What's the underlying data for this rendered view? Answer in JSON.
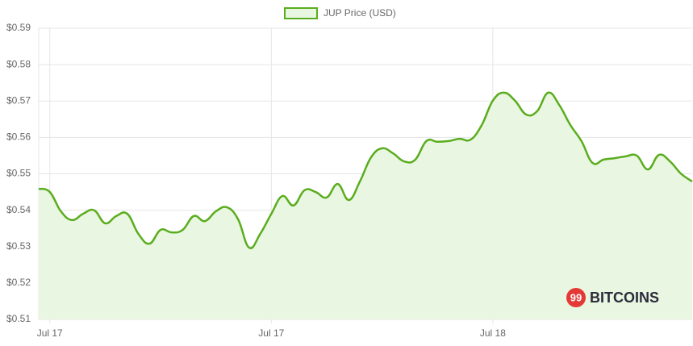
{
  "chart_data": {
    "type": "line",
    "series": [
      {
        "name": "JUP Price (USD)",
        "color": "#5aad1e",
        "fill": "#e9f6e1",
        "values": [
          0.5459,
          0.545,
          0.5397,
          0.5373,
          0.539,
          0.54,
          0.5364,
          0.5384,
          0.539,
          0.5335,
          0.5308,
          0.5346,
          0.5339,
          0.5346,
          0.5384,
          0.537,
          0.5397,
          0.5408,
          0.5375,
          0.5297,
          0.5335,
          0.539,
          0.5439,
          0.5413,
          0.5455,
          0.545,
          0.5435,
          0.5472,
          0.5428,
          0.5479,
          0.5545,
          0.557,
          0.5556,
          0.5534,
          0.5539,
          0.559,
          0.5588,
          0.559,
          0.5596,
          0.5594,
          0.5634,
          0.5701,
          0.5723,
          0.5701,
          0.5663,
          0.5672,
          0.5723,
          0.5689,
          0.5634,
          0.559,
          0.553,
          0.5539,
          0.5543,
          0.5548,
          0.555,
          0.5512,
          0.5552,
          0.5534,
          0.55,
          0.5479
        ]
      }
    ],
    "categories": [
      null,
      "Jul 17",
      null,
      null,
      null,
      null,
      null,
      null,
      null,
      null,
      null,
      null,
      null,
      null,
      null,
      null,
      null,
      null,
      null,
      null,
      null,
      "Jul 17",
      null,
      null,
      null,
      null,
      null,
      null,
      null,
      null,
      null,
      null,
      null,
      null,
      null,
      null,
      null,
      null,
      null,
      null,
      null,
      "Jul 18",
      null,
      null,
      null,
      null,
      null,
      null,
      null,
      null,
      null,
      null,
      null,
      null,
      null,
      null,
      null,
      null,
      null,
      null
    ],
    "ylim": [
      0.51,
      0.59
    ],
    "yticks": [
      {
        "value": 0.51,
        "label": "$0.51"
      },
      {
        "value": 0.52,
        "label": "$0.52"
      },
      {
        "value": 0.53,
        "label": "$0.53"
      },
      {
        "value": 0.54,
        "label": "$0.54"
      },
      {
        "value": 0.55,
        "label": "$0.55"
      },
      {
        "value": 0.56,
        "label": "$0.56"
      },
      {
        "value": 0.57,
        "label": "$0.57"
      },
      {
        "value": 0.58,
        "label": "$0.58"
      },
      {
        "value": 0.59,
        "label": "$0.59"
      }
    ],
    "grid": true,
    "legend": "top",
    "watermark": {
      "badge": "99",
      "text": "BITCOINS"
    }
  }
}
